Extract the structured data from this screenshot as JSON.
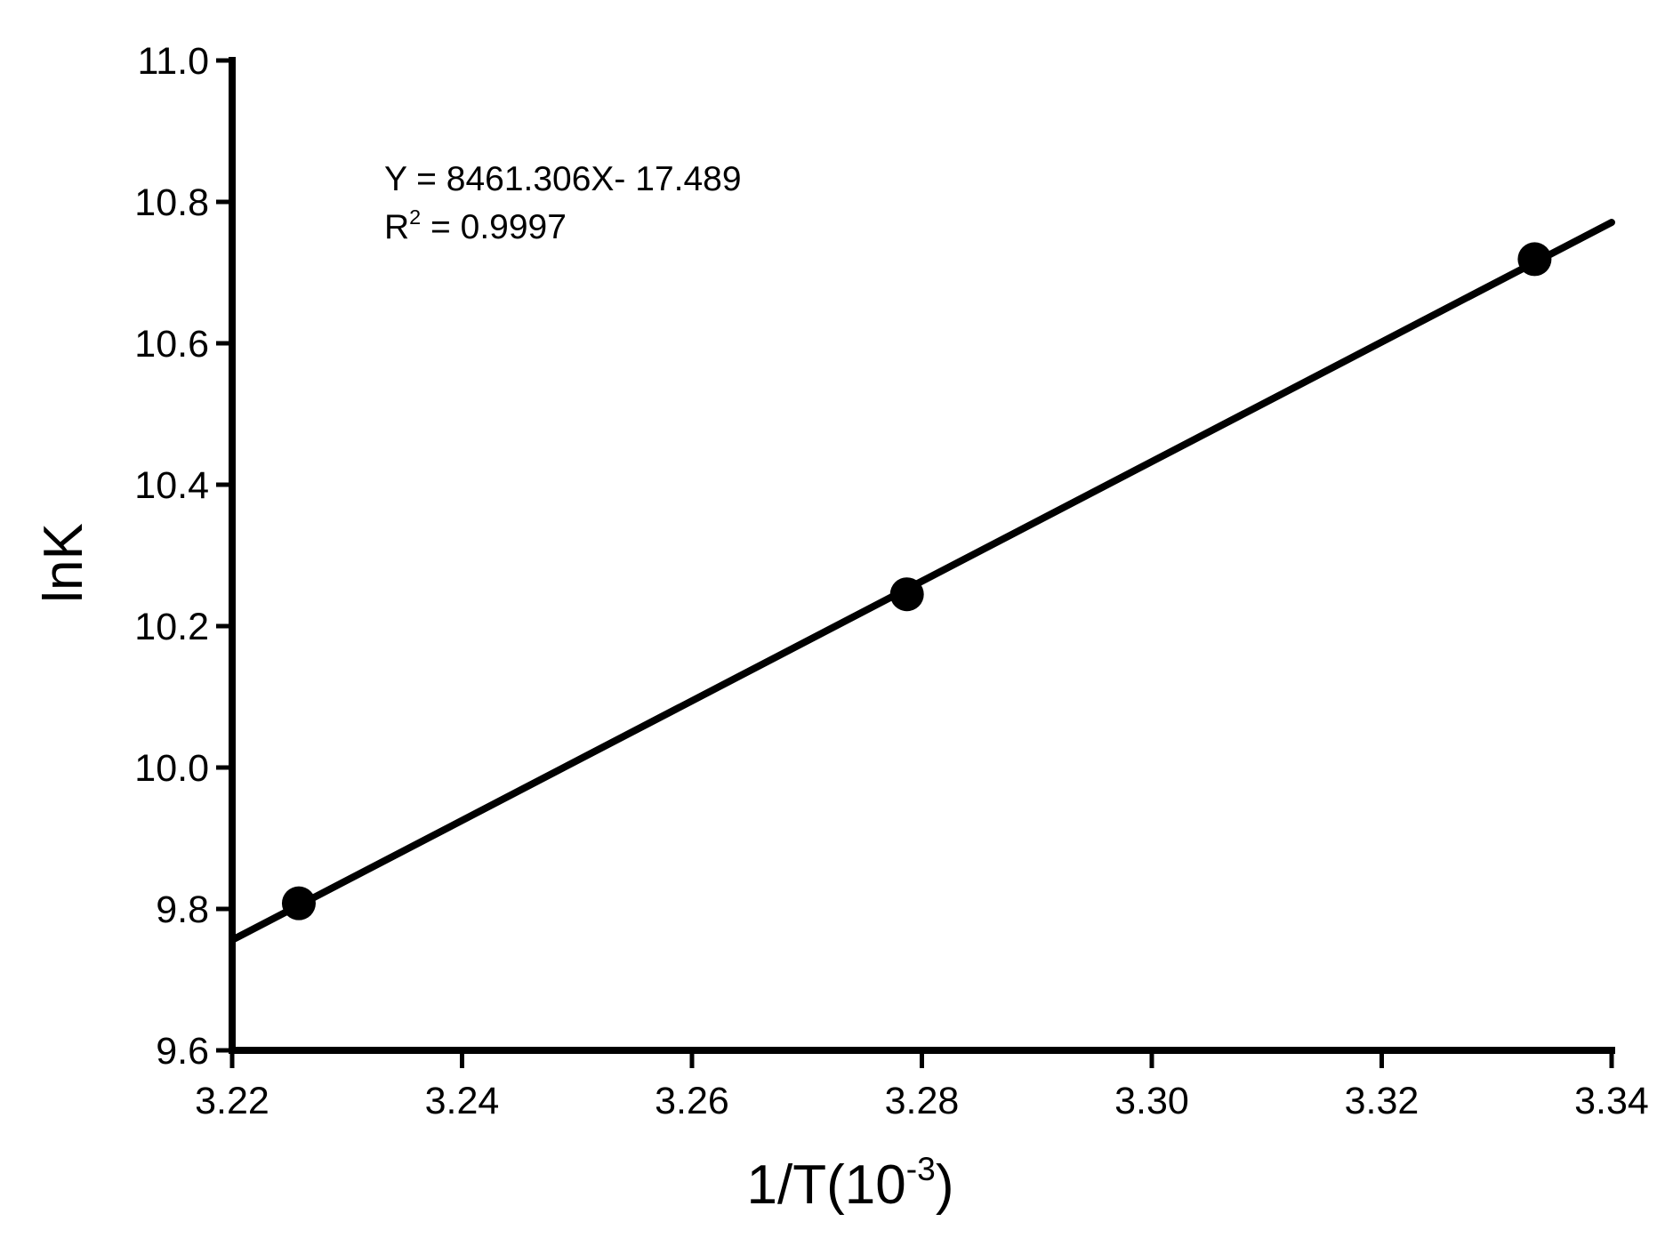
{
  "chart_data": {
    "type": "scatter",
    "xlabel": "1/T(10",
    "xlabel_sup": "-3",
    "xlabel_close": ")",
    "ylabel": "lnK",
    "xlim": [
      3.22,
      3.34
    ],
    "ylim": [
      9.6,
      11.0
    ],
    "x_ticks": [
      "3.22",
      "3.24",
      "3.26",
      "3.28",
      "3.30",
      "3.32",
      "3.34"
    ],
    "y_ticks": [
      "9.6",
      "9.8",
      "10.0",
      "10.2",
      "10.4",
      "10.6",
      "10.8",
      "11.0"
    ],
    "x_tick_values": [
      3.22,
      3.24,
      3.26,
      3.28,
      3.3,
      3.32,
      3.34
    ],
    "y_tick_values": [
      9.6,
      9.8,
      10.0,
      10.2,
      10.4,
      10.6,
      10.8,
      11.0
    ],
    "points": [
      {
        "x": 3.2258,
        "y": 9.808
      },
      {
        "x": 3.2787,
        "y": 10.245
      },
      {
        "x": 3.3333,
        "y": 10.719
      }
    ],
    "fit_line": {
      "x_start": 3.22,
      "y_start": 9.756,
      "x_end": 3.34,
      "y_end": 10.771
    },
    "equation": "Y = 8461.306X- 17.489",
    "r2_label": "R",
    "r2_sup": "2",
    "r2_value": " = 0.9997",
    "grid": false,
    "color": "#000000"
  }
}
